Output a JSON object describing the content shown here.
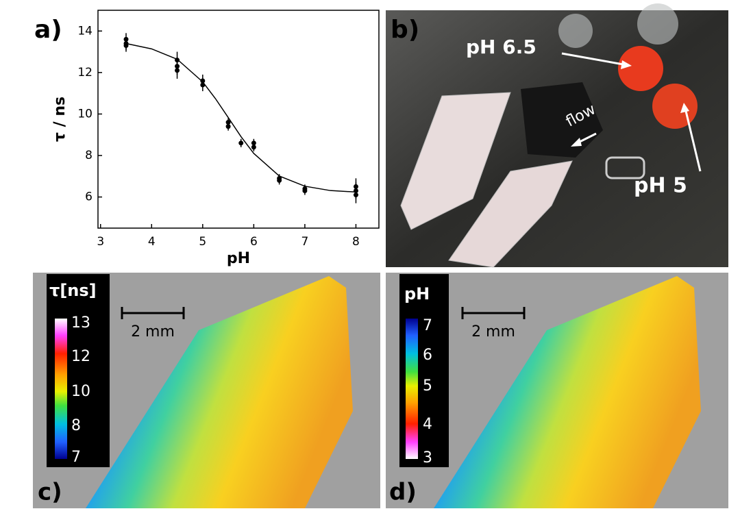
{
  "chart_data": {
    "type": "scatter",
    "panel_label": "a)",
    "xlabel": "pH",
    "ylabel": "τ / ns",
    "xlim": [
      2.95,
      8.45
    ],
    "ylim": [
      4.5,
      15
    ],
    "xticks": [
      3,
      4,
      5,
      6,
      7,
      8
    ],
    "yticks": [
      6,
      8,
      10,
      12,
      14
    ],
    "series": [
      {
        "type": "scatter",
        "color": "#000000",
        "x": [
          3.5,
          3.5,
          3.5,
          4.5,
          4.5,
          4.5,
          5,
          5,
          5.5,
          5.5,
          5.75,
          6,
          6,
          6.5,
          6.5,
          7,
          7,
          8,
          8,
          8
        ],
        "values": [
          13.6,
          13.4,
          13.3,
          12.6,
          12.3,
          12.1,
          11.6,
          11.4,
          9.6,
          9.4,
          8.6,
          8.6,
          8.4,
          6.9,
          6.8,
          6.4,
          6.3,
          6.5,
          6.3,
          6.1
        ],
        "errors": [
          0.3,
          0.3,
          0.3,
          0.4,
          0.4,
          0.4,
          0.3,
          0.3,
          0.2,
          0.2,
          0.2,
          0.2,
          0.2,
          0.2,
          0.2,
          0.2,
          0.2,
          0.4,
          0.4,
          0.4
        ]
      },
      {
        "type": "line",
        "color": "#000000",
        "x": [
          3.5,
          4,
          4.5,
          5,
          5.25,
          5.5,
          5.75,
          6,
          6.5,
          7,
          7.5,
          8
        ],
        "values": [
          13.4,
          13.14,
          12.64,
          11.55,
          10.74,
          9.83,
          8.91,
          8.1,
          7.01,
          6.52,
          6.31,
          6.24
        ]
      }
    ]
  },
  "panels": {
    "b": {
      "label": "b)",
      "annotations": [
        "pH 6.5",
        "flow",
        "pH 5"
      ]
    },
    "c": {
      "label": "c)",
      "colorbar_title": "τ[ns]",
      "colorbar_ticks": [
        13,
        12,
        10,
        8,
        7
      ],
      "scale_bar": "2 mm"
    },
    "d": {
      "label": "d)",
      "colorbar_title": "pH",
      "colorbar_ticks": [
        7,
        6,
        5,
        4,
        3
      ],
      "scale_bar": "2 mm"
    }
  }
}
